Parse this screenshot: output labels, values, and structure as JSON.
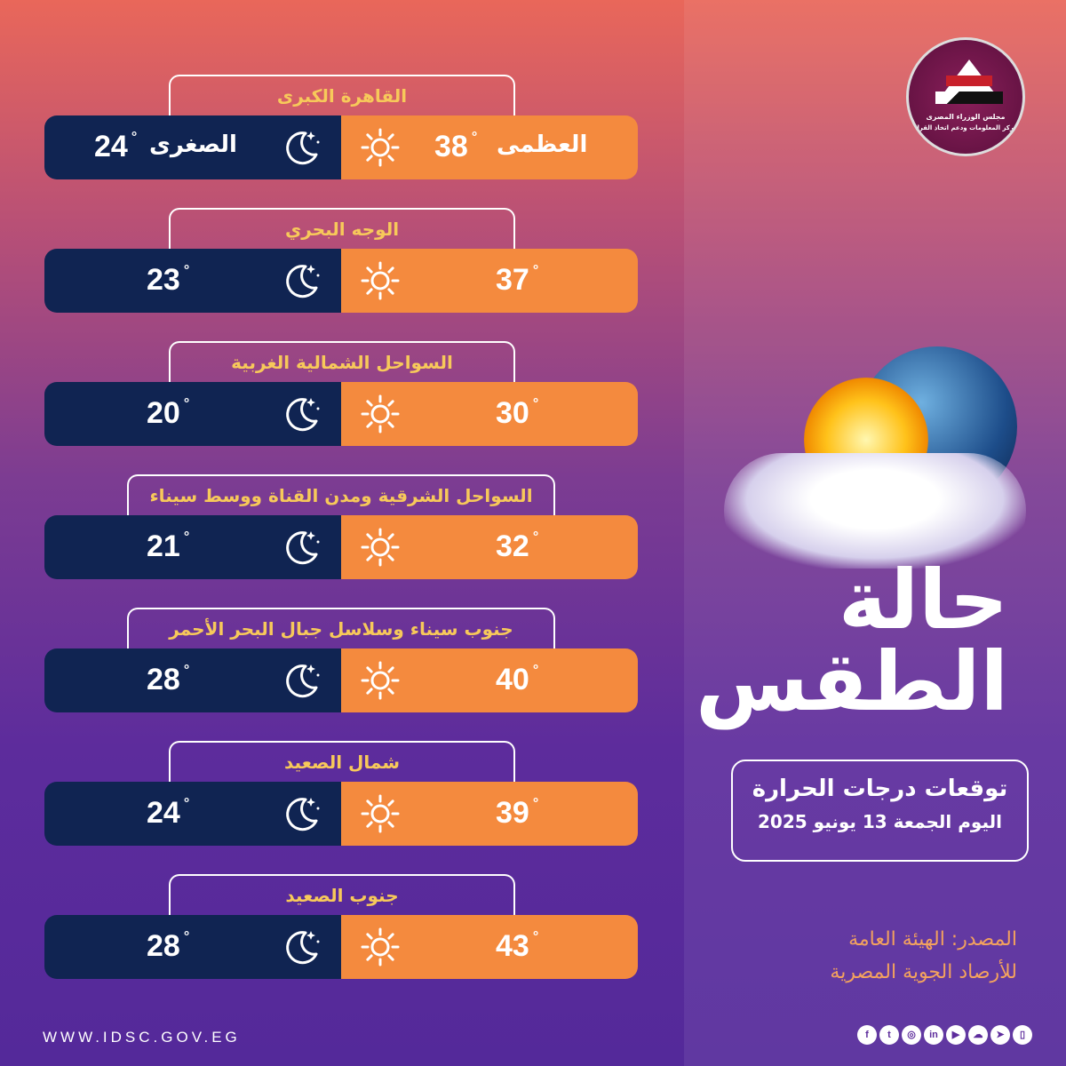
{
  "logo": {
    "line1": "مجلس الوزراء المصرى",
    "line2": "مركز المعلومات ودعم اتخاذ القرار"
  },
  "labels": {
    "max": "العظمى",
    "min": "الصغرى",
    "degree": "°"
  },
  "regions": [
    {
      "name": "القاهرة الكبرى",
      "max": "38",
      "min": "24"
    },
    {
      "name": "الوجه البحري",
      "max": "37",
      "min": "23"
    },
    {
      "name": "السواحل الشمالية الغربية",
      "max": "30",
      "min": "20"
    },
    {
      "name": "السواحل الشرقية ومدن القناة ووسط سيناء",
      "max": "32",
      "min": "21"
    },
    {
      "name": "جنوب سيناء وسلاسل جبال البحر الأحمر",
      "max": "40",
      "min": "28"
    },
    {
      "name": "شمال الصعيد",
      "max": "39",
      "min": "24"
    },
    {
      "name": "جنوب الصعيد",
      "max": "43",
      "min": "28"
    }
  ],
  "title": {
    "line1": "حالة",
    "line2": "الطقس"
  },
  "forecast": {
    "heading": "توقعات درجات الحرارة",
    "date": "اليوم  الجمعة 13 يونيو 2025"
  },
  "source": {
    "line1": "المصدر: الهيئة العامة",
    "line2": "للأرصاد الجوية المصرية"
  },
  "website": "WWW.IDSC.GOV.EG",
  "social": [
    "facebook",
    "twitter",
    "instagram",
    "linkedin",
    "youtube",
    "soundcloud",
    "telegram",
    "app"
  ],
  "colors": {
    "max_bg": "#f48a3e",
    "min_bg": "#102452",
    "tab_text": "#f7c95a",
    "source_text": "#f3a25e"
  }
}
